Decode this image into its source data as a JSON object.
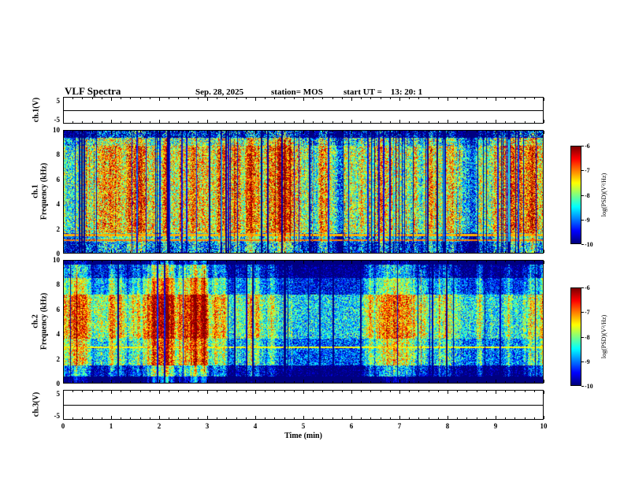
{
  "header": {
    "title": "VLF Spectra",
    "date": "Sep. 28, 2025",
    "station_label": "station= MOS",
    "start_ut_label": "start UT =    13: 20: 1"
  },
  "x_axis": {
    "label": "Time (min)",
    "min": 0,
    "max": 10,
    "ticks": [
      "0",
      "1",
      "2",
      "3",
      "4",
      "5",
      "6",
      "7",
      "8",
      "9",
      "10"
    ]
  },
  "colorbars": [
    {
      "label": "log(PSD)(V²/Hz)",
      "tick_labels": [
        "-6",
        "-7",
        "-8",
        "-9",
        "-10"
      ],
      "colormap": "jet",
      "attached_to": "ch1_spectrogram"
    },
    {
      "label": "log(PSD)(V²/Hz)",
      "tick_labels": [
        "-6",
        "-7",
        "-8",
        "-9",
        "-10"
      ],
      "colormap": "jet",
      "attached_to": "ch2_spectrogram"
    }
  ],
  "chart_data": [
    {
      "type": "line",
      "name": "ch1_voltage",
      "ylabel": "ch.1(V)",
      "ylim": [
        -5,
        5
      ],
      "ytick_labels": [
        "5",
        "-5"
      ],
      "xlim": [
        0,
        10
      ],
      "series": [
        {
          "name": "ch.1 waveform",
          "description": "flat trace at 0 V across full record",
          "values": [
            [
              0,
              0
            ],
            [
              10,
              0
            ]
          ]
        }
      ]
    },
    {
      "type": "heatmap",
      "name": "ch1_spectrogram",
      "ylabel_lines": [
        "ch.1",
        "Frequency (kHz)"
      ],
      "ylim": [
        0,
        10
      ],
      "yticks": [
        0,
        2,
        4,
        6,
        8,
        10
      ],
      "xlim": [
        0,
        10
      ],
      "z_label": "log(PSD)(V²/Hz)",
      "z_range": [
        -10,
        -6
      ],
      "colormap": "jet",
      "appearance": "dense green/yellow speckle 1.6-8.8 kHz, many dark-blue vertical dropouts, sparse red vertical bursts, near-black speckled band above 9.4 kHz, darker band below 1.6 kHz crossed by two bright horizontal lines near 1.0 and 1.45 kHz",
      "synthesis": {
        "seed": 1234567,
        "col_mod": 0.5,
        "dark_stripe_prob": 0.12,
        "hot_stripe_prob": 0.03,
        "bands": [
          {
            "range": [
              9.4,
              10
            ],
            "level": -10.0,
            "noise": 1.5
          },
          {
            "range": [
              8.8,
              9.4
            ],
            "level": -8.3,
            "noise": 1.2
          },
          {
            "range": [
              1.6,
              8.8
            ],
            "level": -7.7,
            "noise": 1.05
          },
          {
            "range": [
              0.9,
              1.6
            ],
            "level": -8.7,
            "noise": 1.0
          },
          {
            "range": [
              0,
              0.9
            ],
            "level": -9.2,
            "noise": 1.2
          }
        ],
        "lines": [
          {
            "freq": 1.05,
            "level": -7.0
          },
          {
            "freq": 1.45,
            "level": -7.2
          }
        ]
      }
    },
    {
      "type": "heatmap",
      "name": "ch2_spectrogram",
      "ylabel_lines": [
        "ch.2",
        "Frequency (kHz)"
      ],
      "ylim": [
        0,
        10
      ],
      "yticks": [
        0,
        2,
        4,
        6,
        8,
        10
      ],
      "xlim": [
        0,
        10
      ],
      "z_label": "log(PSD)(V²/Hz)",
      "z_range": [
        -10,
        -6
      ],
      "colormap": "jet",
      "appearance": "broad yellow-orange-red band 3.6-7.2 kHz with strong red patches, green 1.4-3.6 and 7.2-8.6 kHz, blue/cyan 8.6-9.7 kHz and below 1.4 kHz, near-black strips at 0-0.5 kHz and 9.7-10 kHz, occasional dark vertical dropouts",
      "synthesis": {
        "seed": 7654321,
        "col_mod": 0.6,
        "dark_stripe_prob": 0.04,
        "hot_stripe_prob": 0.015,
        "bands": [
          {
            "range": [
              9.7,
              10
            ],
            "level": -10.1,
            "noise": 0.8
          },
          {
            "range": [
              8.6,
              9.7
            ],
            "level": -8.7,
            "noise": 0.9
          },
          {
            "range": [
              7.2,
              8.6
            ],
            "level": -7.9,
            "noise": 0.8
          },
          {
            "range": [
              3.6,
              7.2
            ],
            "level": -7.0,
            "noise": 0.9
          },
          {
            "range": [
              1.4,
              3.6
            ],
            "level": -7.6,
            "noise": 0.9
          },
          {
            "range": [
              0.5,
              1.4
            ],
            "level": -8.8,
            "noise": 0.9
          },
          {
            "range": [
              0,
              0.5
            ],
            "level": -10.0,
            "noise": 0.5
          }
        ],
        "lines": [
          {
            "freq": 2.9,
            "level": -7.5
          }
        ]
      }
    },
    {
      "type": "line",
      "name": "ch3_voltage",
      "ylabel": "ch.3(V)",
      "ylim": [
        -5,
        5
      ],
      "ytick_labels": [
        "5",
        "-5"
      ],
      "xlim": [
        0,
        10
      ],
      "series": [
        {
          "name": "ch.3 waveform",
          "description": "flat trace at 0 V across full record",
          "values": [
            [
              0,
              0
            ],
            [
              10,
              0
            ]
          ]
        }
      ]
    }
  ]
}
